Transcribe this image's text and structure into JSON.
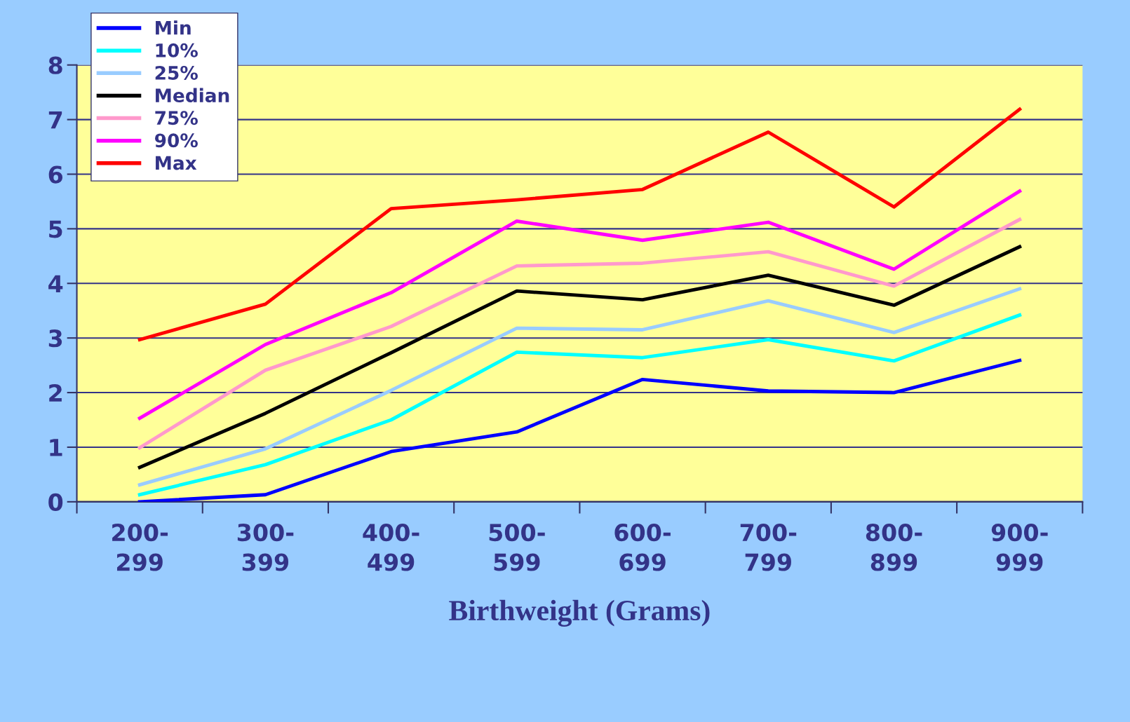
{
  "chart_data": {
    "type": "line",
    "xlabel": "Birthweight (Grams)",
    "categories": [
      "200-299",
      "300-399",
      "400-499",
      "500-599",
      "600-699",
      "700-799",
      "800-899",
      "900-999"
    ],
    "series": [
      {
        "name": "Min",
        "color": "#0000ff",
        "values": [
          0.0,
          0.13,
          0.92,
          1.28,
          2.24,
          2.03,
          2.0,
          2.59
        ]
      },
      {
        "name": "10%",
        "color": "#00ffff",
        "values": [
          0.13,
          0.68,
          1.5,
          2.74,
          2.64,
          2.97,
          2.58,
          3.42
        ]
      },
      {
        "name": "25%",
        "color": "#99ccff",
        "values": [
          0.31,
          0.97,
          2.04,
          3.18,
          3.15,
          3.68,
          3.1,
          3.9
        ]
      },
      {
        "name": "Median",
        "color": "#000000",
        "values": [
          0.63,
          1.62,
          2.73,
          3.86,
          3.7,
          4.15,
          3.6,
          4.67
        ]
      },
      {
        "name": "75%",
        "color": "#ff99cc",
        "values": [
          0.99,
          2.41,
          3.21,
          4.32,
          4.37,
          4.58,
          3.95,
          5.17
        ]
      },
      {
        "name": "90%",
        "color": "#ff00ff",
        "values": [
          1.53,
          2.88,
          3.83,
          5.14,
          4.79,
          5.12,
          4.26,
          5.69
        ]
      },
      {
        "name": "Max",
        "color": "#ff0000",
        "values": [
          2.97,
          3.62,
          5.37,
          5.53,
          5.72,
          6.77,
          5.4,
          7.19
        ]
      }
    ],
    "ylim": [
      0,
      8
    ],
    "yticks": [
      0,
      1,
      2,
      3,
      4,
      5,
      6,
      7,
      8
    ],
    "grid": "y",
    "legend": "top left",
    "marker": "none",
    "line_style": "solid"
  }
}
